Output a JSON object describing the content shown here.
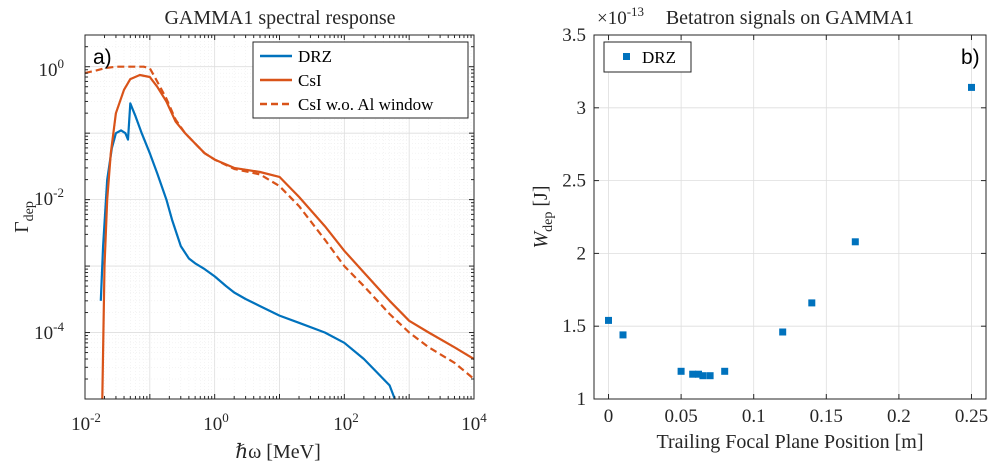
{
  "chart_data": [
    {
      "type": "line",
      "title": "GAMMA1 spectral response",
      "xlabel": "ℏω [MeV]",
      "ylabel": "Γ",
      "ylabel_sub": "dep",
      "xscale": "log",
      "yscale": "log",
      "xlim": [
        0.01,
        10000
      ],
      "ylim": [
        1e-05,
        3
      ],
      "xtick_labels": [
        {
          "base": "10",
          "exp": "-2"
        },
        {
          "base": "10",
          "exp": "0"
        },
        {
          "base": "10",
          "exp": "2"
        },
        {
          "base": "10",
          "exp": "4"
        }
      ],
      "ytick_labels": [
        {
          "base": "10",
          "exp": "-4"
        },
        {
          "base": "10",
          "exp": "-2"
        },
        {
          "base": "10",
          "exp": "0"
        }
      ],
      "grid": true,
      "legend_position": "top-right",
      "panel_label": "a)",
      "series": [
        {
          "name": "DRZ",
          "color": "#0072BD",
          "style": "solid",
          "x": [
            0.0175,
            0.019,
            0.022,
            0.026,
            0.03,
            0.036,
            0.042,
            0.046,
            0.05,
            0.06,
            0.075,
            0.1,
            0.13,
            0.18,
            0.22,
            0.3,
            0.4,
            0.5,
            0.7,
            1,
            1.5,
            2,
            3,
            5,
            10,
            20,
            50,
            100,
            200,
            500,
            600
          ],
          "y": [
            0.0003,
            0.002,
            0.02,
            0.06,
            0.1,
            0.11,
            0.1,
            0.08,
            0.28,
            0.18,
            0.1,
            0.05,
            0.025,
            0.01,
            0.005,
            0.002,
            0.0013,
            0.0011,
            0.0009,
            0.0007,
            0.0005,
            0.0004,
            0.00032,
            0.00025,
            0.00018,
            0.00014,
            0.0001,
            7e-05,
            4e-05,
            1.6e-05,
            1e-05
          ]
        },
        {
          "name": "CsI",
          "color": "#D95319",
          "style": "solid",
          "x": [
            0.0185,
            0.02,
            0.022,
            0.025,
            0.03,
            0.04,
            0.05,
            0.07,
            0.1,
            0.13,
            0.18,
            0.25,
            0.35,
            0.5,
            0.7,
            1,
            2,
            5,
            10,
            20,
            50,
            100,
            200,
            500,
            1000,
            2000,
            5000,
            10000
          ],
          "y": [
            1e-05,
            0.001,
            0.01,
            0.05,
            0.2,
            0.45,
            0.65,
            0.75,
            0.7,
            0.5,
            0.3,
            0.15,
            0.1,
            0.07,
            0.05,
            0.04,
            0.03,
            0.026,
            0.022,
            0.011,
            0.004,
            0.0017,
            0.0008,
            0.0003,
            0.00015,
            0.0001,
            6e-05,
            4e-05
          ]
        },
        {
          "name": "CsI w.o. Al window",
          "color": "#D95319",
          "style": "dashed",
          "x": [
            0.01,
            0.015,
            0.02,
            0.03,
            0.05,
            0.08,
            0.1,
            0.13,
            0.18,
            0.25,
            0.35,
            0.5,
            0.7,
            1,
            2,
            5,
            10,
            20,
            50,
            100,
            200,
            500,
            1000,
            2000,
            5000,
            10000
          ],
          "y": [
            0.8,
            0.88,
            0.95,
            1.0,
            1.0,
            1.0,
            0.95,
            0.6,
            0.33,
            0.16,
            0.1,
            0.07,
            0.05,
            0.04,
            0.029,
            0.024,
            0.016,
            0.008,
            0.0025,
            0.001,
            0.0005,
            0.00019,
            0.0001,
            6e-05,
            3.5e-05,
            2e-05
          ]
        }
      ]
    },
    {
      "type": "scatter",
      "title": "Betatron signals on GAMMA1",
      "xlabel": "Trailing Focal Plane Position [m]",
      "ylabel": "W",
      "ylabel_sub": "dep",
      "ylabel_unit": " [J]",
      "exponent_label": {
        "base": "×10",
        "exp": "-13"
      },
      "xlim": [
        -0.01,
        0.26
      ],
      "ylim": [
        1,
        3.5
      ],
      "xticks": [
        0,
        0.05,
        0.1,
        0.15,
        0.2,
        0.25
      ],
      "xtick_labels": [
        "0",
        "0.05",
        "0.1",
        "0.15",
        "0.2",
        "0.25"
      ],
      "yticks": [
        1,
        1.5,
        2,
        2.5,
        3,
        3.5
      ],
      "ytick_labels": [
        "1",
        "1.5",
        "2",
        "2.5",
        "3",
        "3.5"
      ],
      "grid": true,
      "legend_position": "top-left",
      "panel_label": "b)",
      "series": [
        {
          "name": "DRZ",
          "color": "#0072BD",
          "marker": "square",
          "x": [
            0,
            0.01,
            0.05,
            0.058,
            0.062,
            0.065,
            0.07,
            0.08,
            0.12,
            0.14,
            0.17,
            0.25
          ],
          "y": [
            1.54,
            1.44,
            1.19,
            1.17,
            1.17,
            1.16,
            1.16,
            1.19,
            1.46,
            1.66,
            2.08,
            3.14
          ]
        }
      ]
    }
  ]
}
